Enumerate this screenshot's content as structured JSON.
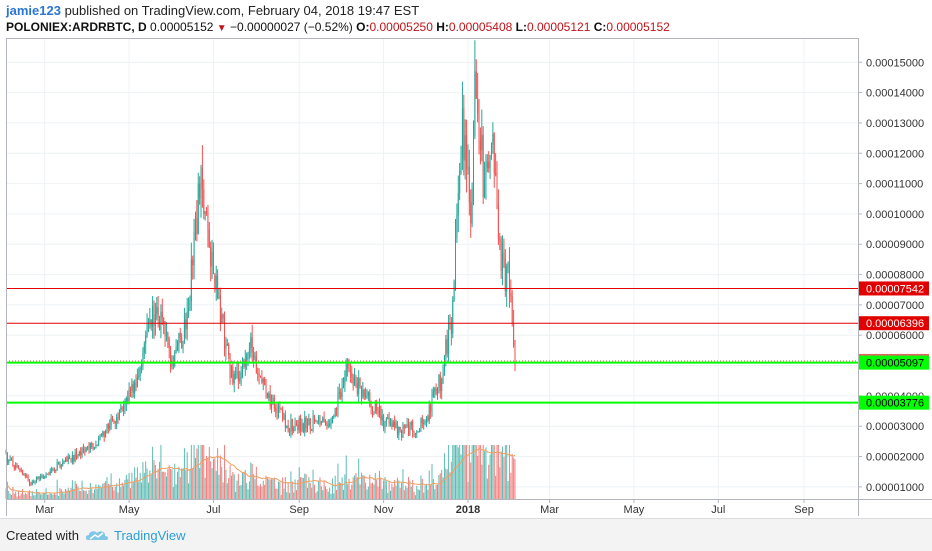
{
  "header": {
    "user": "jamie123",
    "published_text": "published on TradingView.com, February 04, 2018 19:47 EST"
  },
  "symbol_line": {
    "symbol": "POLONIEX:ARDRBTC, D",
    "last": "0.00005152",
    "change": "−0.00000027 (−0.52%)",
    "o_label": "O:",
    "o_value": "0.00005250",
    "h_label": "H:",
    "h_value": "0.00005408",
    "l_label": "L:",
    "l_value": "0.00005121",
    "c_label": "C:",
    "c_value": "0.00005152"
  },
  "footer": {
    "created_with": "Created with",
    "brand": "TradingView"
  },
  "colors": {
    "up": "#26a69a",
    "down": "#ef5350",
    "red_line": "#e00000",
    "green_line": "#00ff00",
    "volume_ma": "#f0a060",
    "grid": "#eef2f5"
  },
  "chart_data": {
    "type": "candlestick",
    "y_axis": {
      "range": [
        6e-06,
        0.000158
      ],
      "ticks": [
        "0.00001000",
        "0.00002000",
        "0.00003000",
        "0.00004000",
        "0.00005000",
        "0.00006000",
        "0.00007000",
        "0.00008000",
        "0.00009000",
        "0.00010000",
        "0.00011000",
        "0.00012000",
        "0.00013000",
        "0.00014000",
        "0.00015000"
      ]
    },
    "x_axis": {
      "range": [
        "2017-02-01",
        "2018-10-10"
      ],
      "ticks": [
        {
          "label": "Mar",
          "date": "2017-03-01"
        },
        {
          "label": "May",
          "date": "2017-05-01"
        },
        {
          "label": "Jul",
          "date": "2017-07-01"
        },
        {
          "label": "Sep",
          "date": "2017-09-01"
        },
        {
          "label": "Nov",
          "date": "2017-11-01"
        },
        {
          "label": "2018",
          "date": "2018-01-01"
        },
        {
          "label": "Mar",
          "date": "2018-03-01"
        },
        {
          "label": "May",
          "date": "2018-05-01"
        },
        {
          "label": "Jul",
          "date": "2018-07-01"
        },
        {
          "label": "Sep",
          "date": "2018-09-01"
        }
      ]
    },
    "grid": true,
    "price_series": {
      "start": "2017-02-01",
      "end": "2018-02-04",
      "anchors": [
        [
          "2017-02-01",
          1.95e-05
        ],
        [
          "2017-02-20",
          1.1e-05
        ],
        [
          "2017-03-10",
          1.7e-05
        ],
        [
          "2017-04-01",
          2.2e-05
        ],
        [
          "2017-04-20",
          3.2e-05
        ],
        [
          "2017-05-05",
          4.3e-05
        ],
        [
          "2017-05-20",
          7e-05
        ],
        [
          "2017-06-01",
          5.1e-05
        ],
        [
          "2017-06-12",
          6.5e-05
        ],
        [
          "2017-06-22",
          0.000115
        ],
        [
          "2017-06-28",
          9e-05
        ],
        [
          "2017-07-05",
          7e-05
        ],
        [
          "2017-07-15",
          4.5e-05
        ],
        [
          "2017-07-28",
          5.5e-05
        ],
        [
          "2017-08-10",
          4e-05
        ],
        [
          "2017-08-25",
          3e-05
        ],
        [
          "2017-09-10",
          3.1e-05
        ],
        [
          "2017-09-25",
          3.3e-05
        ],
        [
          "2017-10-05",
          4.8e-05
        ],
        [
          "2017-10-20",
          4e-05
        ],
        [
          "2017-11-01",
          3.2e-05
        ],
        [
          "2017-11-15",
          2.8e-05
        ],
        [
          "2017-12-01",
          3.1e-05
        ],
        [
          "2017-12-12",
          4.5e-05
        ],
        [
          "2017-12-20",
          6.5e-05
        ],
        [
          "2017-12-28",
          0.000125
        ],
        [
          "2018-01-03",
          0.0001
        ],
        [
          "2018-01-07",
          0.00015
        ],
        [
          "2018-01-12",
          0.00011
        ],
        [
          "2018-01-18",
          0.000125
        ],
        [
          "2018-01-25",
          8.5e-05
        ],
        [
          "2018-01-30",
          7.8e-05
        ],
        [
          "2018-02-04",
          5.15e-05
        ]
      ]
    },
    "horizontal_levels": [
      {
        "value": "0.00007542",
        "color": "red",
        "label_bg": "#e00000",
        "label_color": "#ffffff"
      },
      {
        "value": "0.00006396",
        "color": "red",
        "label_bg": "#e00000",
        "label_color": "#ffffff"
      },
      {
        "value": "0.00005152",
        "color": "current",
        "label_bg": "#e06666",
        "label_color": "#ffffff"
      },
      {
        "value": "0.00005097",
        "color": "green",
        "label_bg": "#00ff00",
        "label_color": "#000000"
      },
      {
        "value": "0.00003776",
        "color": "green",
        "label_bg": "#00ff00",
        "label_color": "#000000"
      }
    ],
    "volume": {
      "shown": true,
      "moving_average": true
    }
  }
}
